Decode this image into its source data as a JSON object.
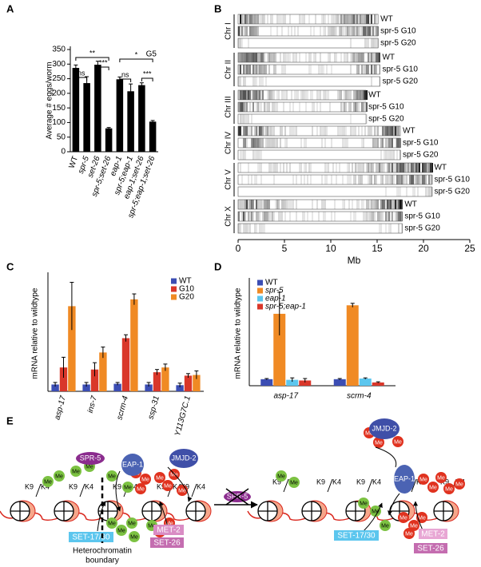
{
  "chart_data": [
    {
      "type": "bar",
      "panel": "A",
      "title": "G5",
      "ylabel": "Average # eggs/worm",
      "categories": [
        "WT",
        "spr-5",
        "set-26",
        "spr-5;set-26",
        "eap-1",
        "spr-5;eap-1",
        "eap-1;set-26",
        "spr-5;eap-1;set-26"
      ],
      "values": [
        287,
        235,
        298,
        80,
        248,
        207,
        228,
        103
      ],
      "errors": [
        10,
        22,
        12,
        3,
        8,
        25,
        8,
        4
      ],
      "color": "#000000",
      "ylim": [
        0,
        350
      ],
      "yticks": [
        0,
        50,
        100,
        150,
        200,
        250,
        300,
        350
      ],
      "annotations": [
        "ns",
        "**",
        "***",
        "ns",
        "*",
        "***"
      ]
    },
    {
      "type": "track",
      "panel": "B",
      "xlabel": "Mb",
      "rows": [
        "Chr I",
        "Chr II",
        "Chr III",
        "Chr IV",
        "Chr V",
        "Chr X"
      ],
      "tracks": [
        "WT",
        "spr-5 G10",
        "spr-5 G20"
      ],
      "lengths": [
        15.1,
        15.3,
        13.8,
        17.5,
        20.9,
        17.7
      ],
      "xlim": [
        0,
        25
      ],
      "xticks": [
        0,
        5,
        10,
        15,
        20,
        25
      ]
    },
    {
      "type": "bar",
      "panel": "C",
      "ylabel": "mRNA relative to wildtype",
      "categories": [
        "asp-17",
        "ins-7",
        "scrm-4",
        "ssp-31",
        "Y113G7C.1"
      ],
      "series": [
        {
          "name": "WT",
          "color": "#3b4db3",
          "values": [
            1,
            1,
            1.1,
            1,
            0.9
          ],
          "errors": [
            0.3,
            0.3,
            0.2,
            0.3,
            0.3
          ]
        },
        {
          "name": "G10",
          "color": "#d9372a",
          "values": [
            3.5,
            3.2,
            7.8,
            2.8,
            2.3
          ],
          "errors": [
            1.5,
            1,
            0.5,
            0.4,
            0.3
          ]
        },
        {
          "name": "G20",
          "color": "#f08a24",
          "values": [
            12.5,
            5.7,
            13.5,
            3.5,
            2.4
          ],
          "errors": [
            3.5,
            0.8,
            0.8,
            0.5,
            0.6
          ]
        }
      ],
      "ylim": [
        0,
        17
      ]
    },
    {
      "type": "bar",
      "panel": "D",
      "ylabel": "mRNA relative to wildtype",
      "categories": [
        "asp-17",
        "scrm-4"
      ],
      "series": [
        {
          "name": "WT",
          "color": "#3b4db3",
          "values": [
            1,
            1
          ],
          "errors": [
            0.1,
            0.1
          ]
        },
        {
          "name": "spr-5",
          "color": "#f08a24",
          "values": [
            11,
            12.3
          ],
          "errors": [
            3.3,
            0.3
          ]
        },
        {
          "name": "eap-1",
          "color": "#5cc6ee",
          "values": [
            0.9,
            1.1
          ],
          "errors": [
            0.3,
            0.1
          ]
        },
        {
          "name": "spr-5;eap-1",
          "color": "#d9372a",
          "values": [
            0.8,
            0.5
          ],
          "errors": [
            0.3,
            0.1
          ]
        }
      ],
      "ylim": [
        0,
        16
      ]
    }
  ],
  "diagram": {
    "panel": "E",
    "spr5": "SPR-5",
    "eap1": "EAP-1",
    "jmjd2": "JMJD-2",
    "me": "Me",
    "k9": "K9",
    "k4": "K4",
    "set1730": "SET-17/30",
    "met2": "MET-2",
    "set26": "SET-26",
    "boundary": [
      "Heterochromatin",
      "boundary"
    ]
  }
}
